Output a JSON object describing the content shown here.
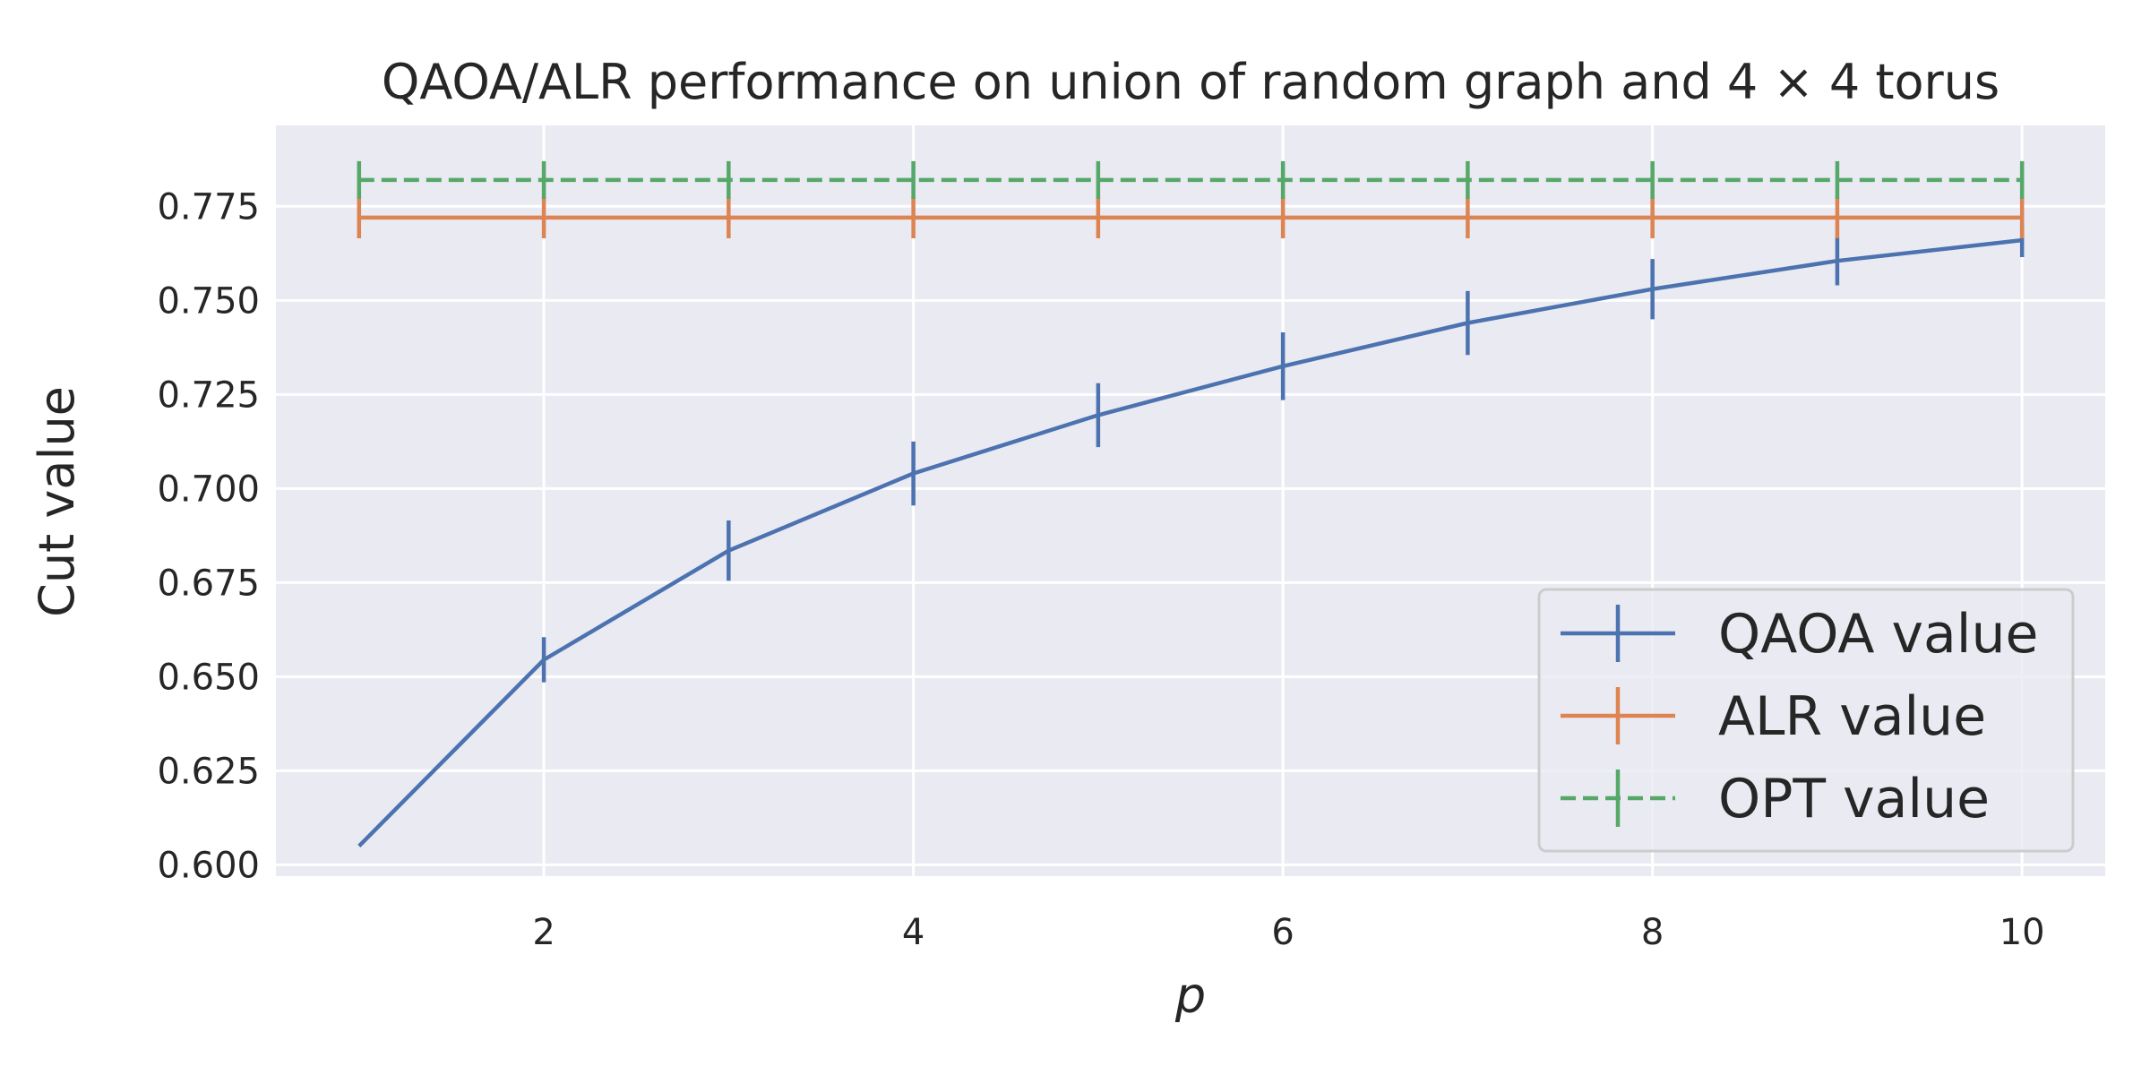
{
  "chart_data": {
    "type": "line",
    "title": "QAOA/ALR performance on union of random graph and 4 × 4 torus",
    "xlabel": "p",
    "ylabel": "Cut value",
    "xlim": [
      0.55,
      10.45
    ],
    "ylim": [
      0.597,
      0.7965
    ],
    "xticks": [
      2,
      4,
      6,
      8,
      10
    ],
    "yticks": [
      0.6,
      0.625,
      0.65,
      0.675,
      0.7,
      0.725,
      0.75,
      0.775
    ],
    "ytick_labels": [
      "0.600",
      "0.625",
      "0.650",
      "0.675",
      "0.700",
      "0.725",
      "0.750",
      "0.775"
    ],
    "grid": true,
    "legend_position": "lower-right",
    "x": [
      1,
      2,
      3,
      4,
      5,
      6,
      7,
      8,
      9,
      10
    ],
    "series": [
      {
        "name": "QAOA value",
        "color": "#4c72b0",
        "style": "solid",
        "values": [
          0.605,
          0.6545,
          0.6835,
          0.704,
          0.7195,
          0.7325,
          0.744,
          0.753,
          0.7605,
          0.766
        ],
        "errors": [
          0,
          0.006,
          0.008,
          0.0085,
          0.0085,
          0.009,
          0.0085,
          0.008,
          0.0065,
          0.0045
        ]
      },
      {
        "name": "ALR value",
        "color": "#dd8452",
        "style": "solid",
        "values": [
          0.772,
          0.772,
          0.772,
          0.772,
          0.772,
          0.772,
          0.772,
          0.772,
          0.772,
          0.772
        ],
        "errors": [
          0.0055,
          0.0055,
          0.0055,
          0.0055,
          0.0055,
          0.0055,
          0.0055,
          0.0055,
          0.0055,
          0.0055
        ]
      },
      {
        "name": "OPT value",
        "color": "#55a868",
        "style": "dashed",
        "values": [
          0.782,
          0.782,
          0.782,
          0.782,
          0.782,
          0.782,
          0.782,
          0.782,
          0.782,
          0.782
        ],
        "errors": [
          0.005,
          0.005,
          0.005,
          0.005,
          0.005,
          0.005,
          0.005,
          0.005,
          0.005,
          0.005
        ]
      }
    ]
  }
}
